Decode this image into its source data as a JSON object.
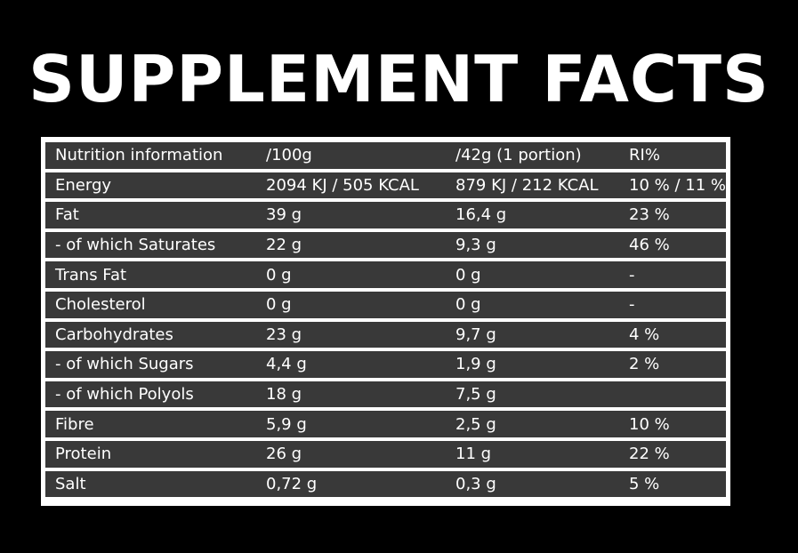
{
  "title": "SUPPLEMENT FACTS",
  "table": {
    "rows": [
      [
        "Nutrition information",
        "/100g",
        "/42g (1 portion)",
        "RI%"
      ],
      [
        "Energy",
        "2094 KJ / 505 KCAL",
        "879 KJ / 212 KCAL",
        "10 % / 11 %"
      ],
      [
        "Fat",
        "39 g",
        "16,4 g",
        "23 %"
      ],
      [
        "- of which Saturates",
        "22 g",
        "9,3 g",
        "46 %"
      ],
      [
        "Trans Fat",
        "0 g",
        "0 g",
        "-"
      ],
      [
        "Cholesterol",
        "0 g",
        "0 g",
        "-"
      ],
      [
        "Carbohydrates",
        "23 g",
        "9,7 g",
        "4 %"
      ],
      [
        "- of which Sugars",
        "4,4 g",
        "1,9 g",
        "2 %"
      ],
      [
        "- of which Polyols",
        "18 g",
        "7,5 g",
        ""
      ],
      [
        "Fibre",
        "5,9 g",
        "2,5 g",
        "10 %"
      ],
      [
        "Protein",
        "26 g",
        "11 g",
        "22 %"
      ],
      [
        "Salt",
        "0,72 g",
        "0,3 g",
        "5 %"
      ]
    ]
  },
  "colors": {
    "background": "#000000",
    "row_fill": "#393939",
    "frame": "#ffffff",
    "text": "#ffffff"
  }
}
